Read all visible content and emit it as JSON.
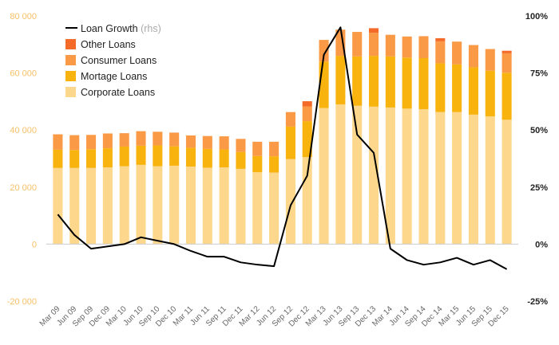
{
  "chart_data": {
    "type": "bar",
    "stacked": true,
    "title": "",
    "xlabel": "",
    "ylabel": "",
    "ylim": [
      -20000,
      80000
    ],
    "y2lim": [
      -25,
      100
    ],
    "yticks": [
      -20000,
      0,
      20000,
      40000,
      60000,
      80000
    ],
    "ytick_labels": [
      "-20 000",
      "0",
      "20 000",
      "40 000",
      "60 000",
      "80 000"
    ],
    "y2ticks": [
      -25,
      0,
      25,
      50,
      75,
      100
    ],
    "y2tick_labels": [
      "-25%",
      "0%",
      "25%",
      "50%",
      "75%",
      "100%"
    ],
    "grid": false,
    "legend_position": "top-left",
    "legend": {
      "line": {
        "label": "Loan Growth",
        "suffix": "(rhs)"
      },
      "items": [
        "Other Loans",
        "Consumer Loans",
        "Mortage Loans",
        "Corporate Loans"
      ]
    },
    "categories": [
      "Mar 09",
      "Jun 09",
      "Sep 09",
      "Dec 09",
      "Mar 10",
      "Jun 10",
      "Sep 10",
      "Dec 10",
      "Mar 11",
      "Jun 11",
      "Sep 11",
      "Dec 11",
      "Mar 12",
      "Jun 12",
      "Sep 12",
      "Dec 12",
      "Mar 13",
      "Jun 13",
      "Sep 13",
      "Dec 13",
      "Mar 14",
      "Jun 14",
      "Sep 14",
      "Dec 14",
      "Mar 15",
      "Jun 15",
      "Sep 15",
      "Dec 15"
    ],
    "series": [
      {
        "name": "Corporate Loans",
        "color": "#fdd88c",
        "values": [
          26700,
          26700,
          26700,
          26900,
          27300,
          27800,
          27300,
          27500,
          27200,
          26800,
          26900,
          26400,
          25200,
          25100,
          29800,
          30500,
          47700,
          49000,
          48500,
          48200,
          47900,
          47500,
          47300,
          46300,
          46300,
          45400,
          44800,
          43600
        ]
      },
      {
        "name": "Mortage Loans",
        "color": "#f8b30e",
        "values": [
          6400,
          6300,
          6600,
          6700,
          6900,
          6700,
          7300,
          6800,
          6600,
          6600,
          6300,
          5900,
          5700,
          5700,
          11400,
          12600,
          16300,
          17000,
          17300,
          17800,
          17900,
          17900,
          17900,
          17100,
          16700,
          16600,
          16000,
          16500
        ]
      },
      {
        "name": "Consumer Loans",
        "color": "#fa9a46",
        "values": [
          5400,
          5200,
          5000,
          5200,
          4700,
          5100,
          4800,
          4800,
          4300,
          4500,
          4600,
          4600,
          5000,
          5100,
          5100,
          5200,
          7600,
          9200,
          8600,
          8100,
          7600,
          7400,
          7700,
          7700,
          8000,
          7800,
          7600,
          6800
        ]
      },
      {
        "name": "Other Loans",
        "color": "#f46a28",
        "values": [
          0,
          0,
          0,
          0,
          0,
          0,
          0,
          0,
          0,
          0,
          0,
          0,
          0,
          0,
          0,
          1800,
          0,
          0,
          0,
          1600,
          0,
          0,
          0,
          1100,
          0,
          0,
          0,
          900
        ]
      }
    ],
    "line_series": {
      "name": "Loan Growth",
      "axis": "right",
      "color": "#000000",
      "values": [
        13,
        4,
        -2,
        -1,
        0,
        3,
        1.5,
        0,
        -3,
        -5.5,
        -5.5,
        -8,
        -9,
        -9.7,
        17,
        30,
        83,
        95,
        48,
        40,
        -2,
        -7,
        -9,
        -8,
        -6,
        -9,
        -7,
        -11
      ]
    }
  }
}
